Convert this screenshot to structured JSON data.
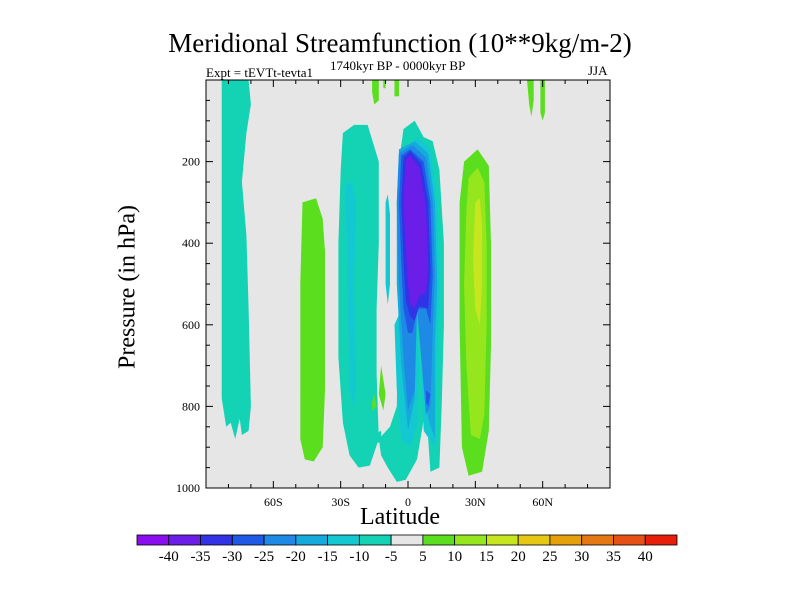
{
  "chart_data": {
    "type": "contour",
    "title": "Meridional Streamfunction (10**9kg/m-2)",
    "subtitle_left": "Expt = tEVTt-tevta1",
    "subtitle_center": "1740kyr BP - 0000kyr BP",
    "subtitle_right": "JJA",
    "xlabel": "Latitude",
    "ylabel": "Pressure (in hPa)",
    "xlim": [
      -90,
      90
    ],
    "ylim": [
      0,
      1000
    ],
    "y_inverted": true,
    "x_ticks": [
      {
        "value": -60,
        "label": "60S"
      },
      {
        "value": -30,
        "label": "30S"
      },
      {
        "value": 0,
        "label": "0"
      },
      {
        "value": 30,
        "label": "30N"
      },
      {
        "value": 60,
        "label": "60N"
      }
    ],
    "y_ticks": [
      {
        "value": 200,
        "label": "200"
      },
      {
        "value": 400,
        "label": "400"
      },
      {
        "value": 600,
        "label": "600"
      },
      {
        "value": 800,
        "label": "800"
      },
      {
        "value": 1000,
        "label": "1000"
      }
    ],
    "levels": [
      -40,
      -35,
      -30,
      -25,
      -20,
      -15,
      -10,
      -5,
      5,
      10,
      15,
      20,
      25,
      30,
      35,
      40
    ],
    "colorbar_colors": [
      "#8a0ef0",
      "#6a1ee8",
      "#3232e6",
      "#1e5ae6",
      "#1e8ae6",
      "#14aadc",
      "#14c8d2",
      "#14d2b4",
      "#e6e6e6",
      "#5ade1e",
      "#96e61e",
      "#c8e61e",
      "#e6c814",
      "#e6a00a",
      "#e67814",
      "#e65014",
      "#e61e0a"
    ],
    "background_color": "#e6e6e6",
    "regions": [
      {
        "level": -7.5,
        "color": "#14d2b4",
        "pts": [
          [
            -83,
            0
          ],
          [
            -71,
            0
          ],
          [
            -70,
            60
          ],
          [
            -72,
            130
          ],
          [
            -74,
            250
          ],
          [
            -72,
            380
          ],
          [
            -71,
            560
          ],
          [
            -70,
            800
          ],
          [
            -71,
            860
          ],
          [
            -74,
            870
          ],
          [
            -75,
            830
          ],
          [
            -77,
            880
          ],
          [
            -79,
            840
          ],
          [
            -81,
            850
          ],
          [
            -83,
            780
          ],
          [
            -83,
            500
          ]
        ]
      },
      {
        "level": -7.5,
        "color": "#14d2b4",
        "pts": [
          [
            -15,
            880
          ],
          [
            -13,
            890
          ],
          [
            -12,
            875
          ],
          [
            -12,
            860
          ],
          [
            -14,
            865
          ]
        ]
      },
      {
        "level": -7.5,
        "color": "#14d2b4",
        "pts": [
          [
            -29,
            130
          ],
          [
            -24,
            110
          ],
          [
            -18,
            110
          ],
          [
            -13,
            200
          ],
          [
            -13,
            400
          ],
          [
            -14,
            560
          ],
          [
            -14,
            720
          ],
          [
            -13,
            880
          ],
          [
            -17,
            945
          ],
          [
            -22,
            950
          ],
          [
            -26,
            920
          ],
          [
            -29,
            840
          ],
          [
            -31,
            680
          ],
          [
            -31,
            400
          ],
          [
            -30,
            220
          ]
        ]
      },
      {
        "level": -7.5,
        "color": "#14d2b4",
        "pts": [
          [
            -13,
            880
          ],
          [
            -8,
            850
          ],
          [
            -5,
            800
          ],
          [
            -4,
            500
          ],
          [
            -4,
            200
          ],
          [
            -2,
            120
          ],
          [
            3,
            100
          ],
          [
            7,
            140
          ],
          [
            11,
            150
          ],
          [
            14,
            220
          ],
          [
            16,
            400
          ],
          [
            16,
            600
          ],
          [
            15,
            800
          ],
          [
            14,
            950
          ],
          [
            10,
            960
          ],
          [
            8,
            800
          ],
          [
            4,
            930
          ],
          [
            -1,
            980
          ],
          [
            -5,
            985
          ],
          [
            -9,
            950
          ],
          [
            -12,
            920
          ]
        ]
      },
      {
        "level": 7.5,
        "color": "#5ade1e",
        "pts": [
          [
            -47,
            300
          ],
          [
            -41,
            290
          ],
          [
            -38,
            340
          ],
          [
            -37,
            420
          ],
          [
            -37,
            560
          ],
          [
            -37,
            760
          ],
          [
            -38,
            900
          ],
          [
            -42,
            935
          ],
          [
            -46,
            930
          ],
          [
            -48,
            880
          ],
          [
            -48,
            500
          ]
        ]
      },
      {
        "level": 7.5,
        "color": "#5ade1e",
        "pts": [
          [
            -12,
            700
          ],
          [
            -10,
            770
          ],
          [
            -11,
            810
          ],
          [
            -13,
            770
          ]
        ]
      },
      {
        "level": 7.5,
        "color": "#5ade1e",
        "pts": [
          [
            -16,
            790
          ],
          [
            -15,
            770
          ],
          [
            -14,
            800
          ],
          [
            -16,
            810
          ]
        ]
      },
      {
        "level": 7.5,
        "color": "#5ade1e",
        "pts": [
          [
            -16,
            0
          ],
          [
            -13,
            0
          ],
          [
            -13,
            50
          ],
          [
            -15,
            60
          ],
          [
            -16,
            30
          ]
        ]
      },
      {
        "level": 7.5,
        "color": "#5ade1e",
        "pts": [
          [
            -6,
            0
          ],
          [
            -4,
            0
          ],
          [
            -4,
            40
          ],
          [
            -6,
            40
          ]
        ]
      },
      {
        "level": 7.5,
        "color": "#5ade1e",
        "pts": [
          [
            25,
            200
          ],
          [
            31,
            170
          ],
          [
            36,
            210
          ],
          [
            37,
            400
          ],
          [
            37,
            650
          ],
          [
            36,
            860
          ],
          [
            33,
            960
          ],
          [
            27,
            970
          ],
          [
            24,
            900
          ],
          [
            23,
            600
          ],
          [
            23,
            300
          ]
        ]
      },
      {
        "level": 7.5,
        "color": "#5ade1e",
        "pts": [
          [
            53,
            0
          ],
          [
            56,
            0
          ],
          [
            56,
            50
          ],
          [
            55,
            90
          ],
          [
            54,
            60
          ]
        ]
      },
      {
        "level": 7.5,
        "color": "#5ade1e",
        "pts": [
          [
            59,
            0
          ],
          [
            61,
            0
          ],
          [
            61,
            80
          ],
          [
            60,
            100
          ],
          [
            59,
            80
          ]
        ]
      },
      {
        "level": 7.5,
        "color": "#5ade1e",
        "pts": [
          [
            -11,
            0
          ],
          [
            -10,
            0
          ],
          [
            -10,
            20
          ],
          [
            -11,
            20
          ]
        ]
      },
      {
        "level": -12.5,
        "color": "#14c8d2",
        "pts": [
          [
            -28,
            260
          ],
          [
            -25,
            250
          ],
          [
            -23,
            300
          ],
          [
            -24,
            500
          ],
          [
            -23,
            750
          ],
          [
            -24,
            800
          ],
          [
            -26,
            760
          ],
          [
            -27,
            500
          ]
        ]
      },
      {
        "level": -12.5,
        "color": "#14c8d2",
        "pts": [
          [
            -10,
            300
          ],
          [
            -9,
            280
          ],
          [
            -8,
            330
          ],
          [
            -8,
            500
          ],
          [
            -9,
            550
          ],
          [
            -10,
            500
          ]
        ]
      },
      {
        "level": -12.5,
        "color": "#14c8d2",
        "pts": [
          [
            -6,
            600
          ],
          [
            -2,
            550
          ],
          [
            3,
            560
          ],
          [
            5,
            700
          ],
          [
            4,
            850
          ],
          [
            1,
            900
          ],
          [
            -3,
            880
          ],
          [
            -5,
            760
          ]
        ]
      },
      {
        "level": -12.5,
        "color": "#14c8d2",
        "pts": [
          [
            -3,
            180
          ],
          [
            4,
            140
          ],
          [
            10,
            170
          ],
          [
            13,
            300
          ],
          [
            14,
            500
          ],
          [
            13,
            680
          ],
          [
            12,
            900
          ],
          [
            7,
            860
          ],
          [
            5,
            560
          ],
          [
            -3,
            560
          ]
        ]
      },
      {
        "level": -17.5,
        "color": "#14aadc",
        "pts": [
          [
            -4,
            170
          ],
          [
            3,
            150
          ],
          [
            9,
            180
          ],
          [
            12,
            300
          ],
          [
            13,
            500
          ],
          [
            12,
            650
          ],
          [
            12,
            880
          ],
          [
            9,
            830
          ],
          [
            4,
            560
          ],
          [
            3,
            780
          ],
          [
            0,
            860
          ],
          [
            -3,
            700
          ],
          [
            -5,
            500
          ],
          [
            -5,
            300
          ]
        ]
      },
      {
        "level": -22.5,
        "color": "#1e8ae6",
        "pts": [
          [
            -4,
            180
          ],
          [
            2,
            160
          ],
          [
            8,
            190
          ],
          [
            11,
            300
          ],
          [
            12,
            480
          ],
          [
            11,
            620
          ],
          [
            10,
            800
          ],
          [
            8,
            820
          ],
          [
            4,
            560
          ],
          [
            3,
            760
          ],
          [
            0,
            810
          ],
          [
            -2,
            680
          ],
          [
            -4,
            500
          ],
          [
            -5,
            300
          ]
        ]
      },
      {
        "level": -27.5,
        "color": "#1e5ae6",
        "pts": [
          [
            -3,
            185
          ],
          [
            1,
            170
          ],
          [
            7,
            200
          ],
          [
            10,
            300
          ],
          [
            11,
            480
          ],
          [
            10,
            600
          ],
          [
            8,
            560
          ],
          [
            4,
            560
          ],
          [
            2,
            620
          ],
          [
            0,
            620
          ],
          [
            -2,
            560
          ],
          [
            -3,
            450
          ],
          [
            -4,
            300
          ]
        ]
      },
      {
        "level": -27.5,
        "color": "#1e5ae6",
        "pts": [
          [
            8,
            760
          ],
          [
            10,
            770
          ],
          [
            9,
            800
          ],
          [
            8,
            790
          ]
        ]
      },
      {
        "level": -32.5,
        "color": "#3232e6",
        "pts": [
          [
            -2,
            190
          ],
          [
            1,
            175
          ],
          [
            6,
            205
          ],
          [
            9,
            300
          ],
          [
            10,
            470
          ],
          [
            9,
            560
          ],
          [
            5,
            555
          ],
          [
            3,
            590
          ],
          [
            1,
            580
          ],
          [
            -1,
            540
          ],
          [
            -2,
            440
          ],
          [
            -3,
            300
          ]
        ]
      },
      {
        "level": -37.5,
        "color": "#6a1ee8",
        "pts": [
          [
            -1,
            195
          ],
          [
            1,
            185
          ],
          [
            5,
            215
          ],
          [
            8,
            310
          ],
          [
            9,
            460
          ],
          [
            8,
            520
          ],
          [
            5,
            530
          ],
          [
            3,
            560
          ],
          [
            1,
            545
          ],
          [
            0,
            500
          ],
          [
            -1,
            420
          ],
          [
            -2,
            300
          ]
        ]
      },
      {
        "level": 12.5,
        "color": "#96e61e",
        "pts": [
          [
            27,
            240
          ],
          [
            31,
            215
          ],
          [
            34,
            250
          ],
          [
            35,
            400
          ],
          [
            35,
            600
          ],
          [
            34,
            820
          ],
          [
            32,
            880
          ],
          [
            28,
            870
          ],
          [
            26,
            700
          ],
          [
            25,
            500
          ],
          [
            26,
            320
          ]
        ]
      },
      {
        "level": 17.5,
        "color": "#c8e61e",
        "pts": [
          [
            30,
            300
          ],
          [
            32,
            290
          ],
          [
            33,
            360
          ],
          [
            33,
            500
          ],
          [
            32,
            600
          ],
          [
            30,
            560
          ],
          [
            29,
            440
          ]
        ]
      }
    ]
  }
}
